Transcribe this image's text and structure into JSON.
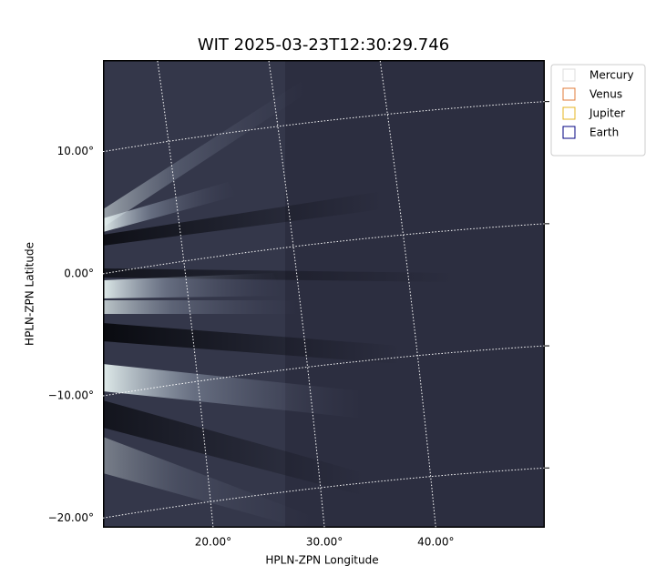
{
  "chart_data": {
    "type": "image",
    "title": "WIT 2025-03-23T12:30:29.746",
    "xlabel": "HPLN-ZPN Longitude",
    "ylabel": "HPLN-ZPN Latitude",
    "xlim": [
      10.1,
      49.8
    ],
    "ylim": [
      -20.8,
      17.5
    ],
    "xticks": [
      {
        "value": 20,
        "label": "20.00°"
      },
      {
        "value": 30,
        "label": "30.00°"
      },
      {
        "value": 40,
        "label": "40.00°"
      }
    ],
    "yticks": [
      {
        "value": 10,
        "label": "10.00°"
      },
      {
        "value": 0,
        "label": "0.00°"
      },
      {
        "value": -10,
        "label": "−10.00°"
      },
      {
        "value": -20,
        "label": "−20.00°"
      }
    ],
    "grid": true,
    "legend_loc": "outside upper right",
    "series": [
      {
        "name": "Mercury",
        "color": "#dddddd"
      },
      {
        "name": "Venus",
        "color": "#e07b39"
      },
      {
        "name": "Jupiter",
        "color": "#e6b422"
      },
      {
        "name": "Earth",
        "color": "#000080"
      }
    ]
  }
}
